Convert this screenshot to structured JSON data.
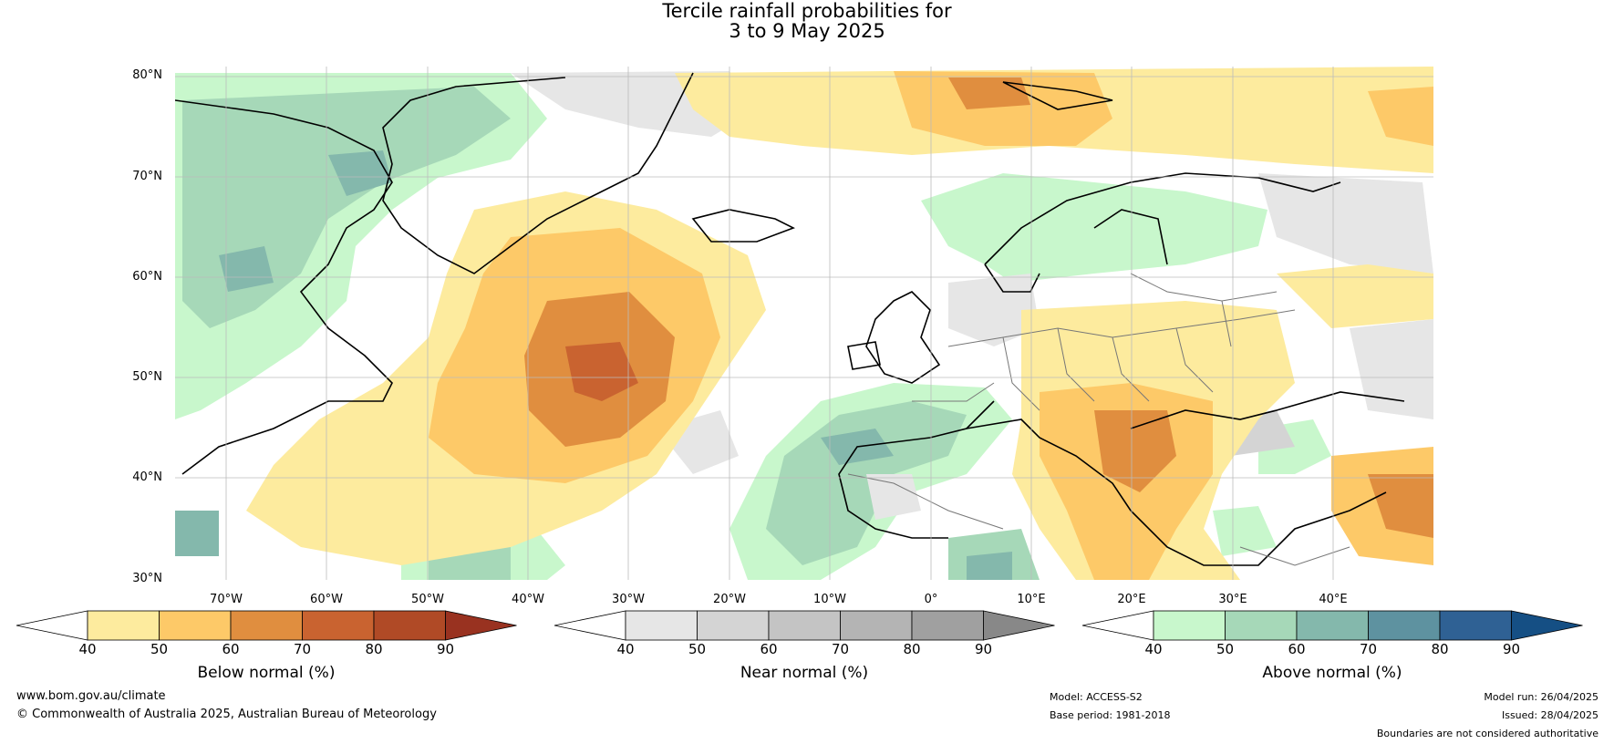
{
  "title_line1": "Tercile rainfall probabilities for",
  "title_line2": "3 to 9 May 2025",
  "lat_labels": [
    "80°N",
    "70°N",
    "60°N",
    "50°N",
    "40°N",
    "30°N"
  ],
  "lon_labels": [
    "70°W",
    "60°W",
    "50°W",
    "40°W",
    "30°W",
    "20°W",
    "10°W",
    "0°",
    "10°E",
    "20°E",
    "30°E",
    "40°E"
  ],
  "colorbars": [
    {
      "label": "Below normal (%)",
      "ticks": [
        "40",
        "50",
        "60",
        "70",
        "80",
        "90"
      ],
      "colors": [
        "#ffffff",
        "#fdeb9e",
        "#fdc968",
        "#e08e3f",
        "#c96330",
        "#b04a26",
        "#993220"
      ]
    },
    {
      "label": "Near normal (%)",
      "ticks": [
        "40",
        "50",
        "60",
        "70",
        "80",
        "90"
      ],
      "colors": [
        "#ffffff",
        "#e6e6e6",
        "#d4d4d4",
        "#c4c4c4",
        "#b4b4b4",
        "#a0a0a0",
        "#888888"
      ]
    },
    {
      "label": "Above normal (%)",
      "ticks": [
        "40",
        "50",
        "60",
        "70",
        "80",
        "90"
      ],
      "colors": [
        "#ffffff",
        "#c8f7cc",
        "#a6d8b8",
        "#84b8ac",
        "#5e92a0",
        "#2f6194",
        "#154f84"
      ]
    }
  ],
  "footer": {
    "url": "www.bom.gov.au/climate",
    "copyright": "© Commonwealth of Australia 2025, Australian Bureau of Meteorology",
    "model": "Model: ACCESS-S2",
    "base_period": "Base period: 1981-2018",
    "model_run": "Model run: 26/04/2025",
    "issued": "Issued: 28/04/2025",
    "disclaimer": "Boundaries are not considered authoritative"
  }
}
